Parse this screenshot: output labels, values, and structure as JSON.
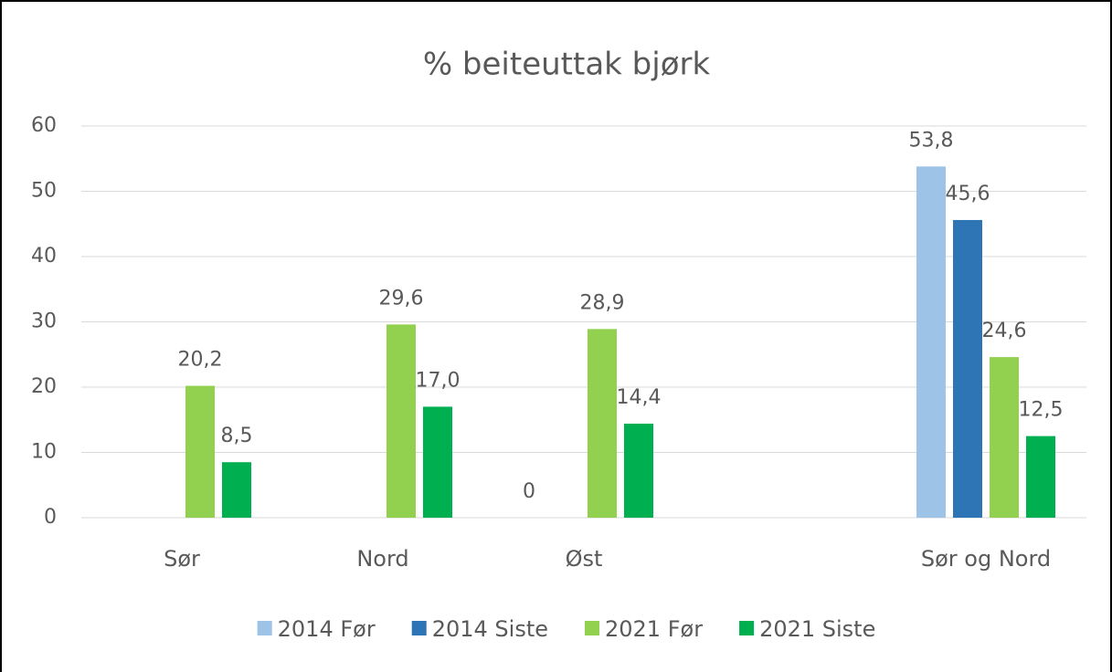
{
  "chart_data": {
    "type": "bar",
    "title": "% beiteuttak bjørk",
    "categories": [
      "Sør",
      "Nord",
      "Øst",
      null,
      "Sør og Nord"
    ],
    "series": [
      {
        "name": "2014 Før",
        "color": "#9dc3e6",
        "values": [
          null,
          null,
          0,
          null,
          53.8
        ],
        "value_labels": [
          null,
          null,
          "0",
          null,
          "53,8"
        ]
      },
      {
        "name": "2014 Siste",
        "color": "#2e75b6",
        "values": [
          null,
          null,
          null,
          null,
          45.6
        ],
        "value_labels": [
          null,
          null,
          null,
          null,
          "45,6"
        ]
      },
      {
        "name": "2021 Før",
        "color": "#92d050",
        "values": [
          20.2,
          29.6,
          28.9,
          null,
          24.6
        ],
        "value_labels": [
          "20,2",
          "29,6",
          "28,9",
          null,
          "24,6"
        ]
      },
      {
        "name": "2021 Siste",
        "color": "#00b050",
        "values": [
          8.5,
          17.0,
          14.4,
          null,
          12.5
        ],
        "value_labels": [
          "8,5",
          "17,0",
          "14,4",
          null,
          "12,5"
        ]
      }
    ],
    "ylim": [
      0,
      60
    ],
    "yticks": [
      0,
      10,
      20,
      30,
      40,
      50,
      60
    ],
    "grid": true,
    "legend": "bottom"
  }
}
